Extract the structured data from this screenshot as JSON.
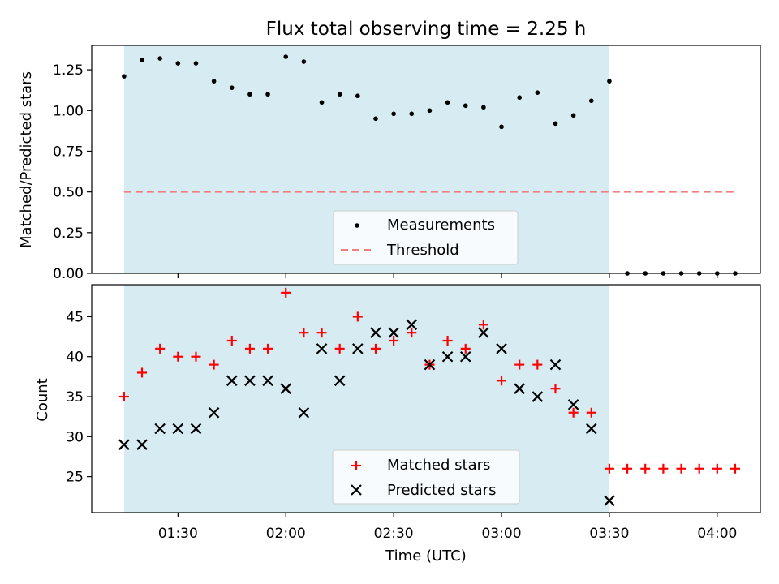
{
  "title": "Flux total observing time = 2.25 h",
  "colors": {
    "shade": "#add8e6",
    "threshold": "#f08080",
    "matched": "#ff0000",
    "predicted": "#000000",
    "measurements": "#000000"
  },
  "chart_data": [
    {
      "type": "scatter",
      "ylabel": "Matched/Predicted stars",
      "ylim": [
        0,
        1.4
      ],
      "yticks": [
        "0.00",
        "0.25",
        "0.50",
        "0.75",
        "1.00",
        "1.25"
      ],
      "shaded_interval": [
        "01:15",
        "03:30"
      ],
      "legend_position": "lower center",
      "series": [
        {
          "name": "Measurements",
          "marker": "dot",
          "x": [
            "01:15",
            "01:20",
            "01:25",
            "01:30",
            "01:35",
            "01:40",
            "01:45",
            "01:50",
            "01:55",
            "02:00",
            "02:05",
            "02:10",
            "02:15",
            "02:20",
            "02:25",
            "02:30",
            "02:35",
            "02:40",
            "02:45",
            "02:50",
            "02:55",
            "03:00",
            "03:05",
            "03:10",
            "03:15",
            "03:20",
            "03:25",
            "03:30",
            "03:35",
            "03:40",
            "03:45",
            "03:50",
            "03:55",
            "04:00",
            "04:05"
          ],
          "y": [
            1.21,
            1.31,
            1.32,
            1.29,
            1.29,
            1.18,
            1.14,
            1.1,
            1.1,
            1.33,
            1.3,
            1.05,
            1.1,
            1.09,
            0.95,
            0.98,
            0.98,
            1.0,
            1.05,
            1.03,
            1.02,
            0.9,
            1.08,
            1.11,
            0.92,
            0.97,
            1.06,
            1.18,
            0,
            0,
            0,
            0,
            0,
            0,
            0
          ]
        },
        {
          "name": "Threshold",
          "style": "dashed",
          "x": [
            "01:15",
            "04:05"
          ],
          "y": [
            0.5,
            0.5
          ]
        }
      ]
    },
    {
      "type": "scatter",
      "xlabel": "Time (UTC)",
      "ylabel": "Count",
      "ylim": [
        20.5,
        49
      ],
      "yticks": [
        "25",
        "30",
        "35",
        "40",
        "45"
      ],
      "xticks": [
        "01:30",
        "02:00",
        "02:30",
        "03:00",
        "03:30",
        "04:00"
      ],
      "shaded_interval": [
        "01:15",
        "03:30"
      ],
      "legend_position": "lower center",
      "series": [
        {
          "name": "Matched stars",
          "marker": "plus",
          "x": [
            "01:15",
            "01:20",
            "01:25",
            "01:30",
            "01:35",
            "01:40",
            "01:45",
            "01:50",
            "01:55",
            "02:00",
            "02:05",
            "02:10",
            "02:15",
            "02:20",
            "02:25",
            "02:30",
            "02:35",
            "02:40",
            "02:45",
            "02:50",
            "02:55",
            "03:00",
            "03:05",
            "03:10",
            "03:15",
            "03:20",
            "03:25",
            "03:30",
            "03:35",
            "03:40",
            "03:45",
            "03:50",
            "03:55",
            "04:00",
            "04:05"
          ],
          "y": [
            35,
            38,
            41,
            40,
            40,
            39,
            42,
            41,
            41,
            48,
            43,
            43,
            41,
            45,
            41,
            42,
            43,
            39,
            42,
            41,
            44,
            37,
            39,
            39,
            36,
            33,
            33,
            26,
            26,
            26,
            26,
            26,
            26,
            26,
            26
          ]
        },
        {
          "name": "Predicted stars",
          "marker": "x",
          "x": [
            "01:15",
            "01:20",
            "01:25",
            "01:30",
            "01:35",
            "01:40",
            "01:45",
            "01:50",
            "01:55",
            "02:00",
            "02:05",
            "02:10",
            "02:15",
            "02:20",
            "02:25",
            "02:30",
            "02:35",
            "02:40",
            "02:45",
            "02:50",
            "02:55",
            "03:00",
            "03:05",
            "03:10",
            "03:15",
            "03:20",
            "03:25",
            "03:30"
          ],
          "y": [
            29,
            29,
            31,
            31,
            31,
            33,
            37,
            37,
            37,
            36,
            33,
            41,
            37,
            41,
            43,
            43,
            44,
            39,
            40,
            40,
            43,
            41,
            36,
            35,
            39,
            34,
            31,
            22
          ]
        }
      ]
    }
  ]
}
